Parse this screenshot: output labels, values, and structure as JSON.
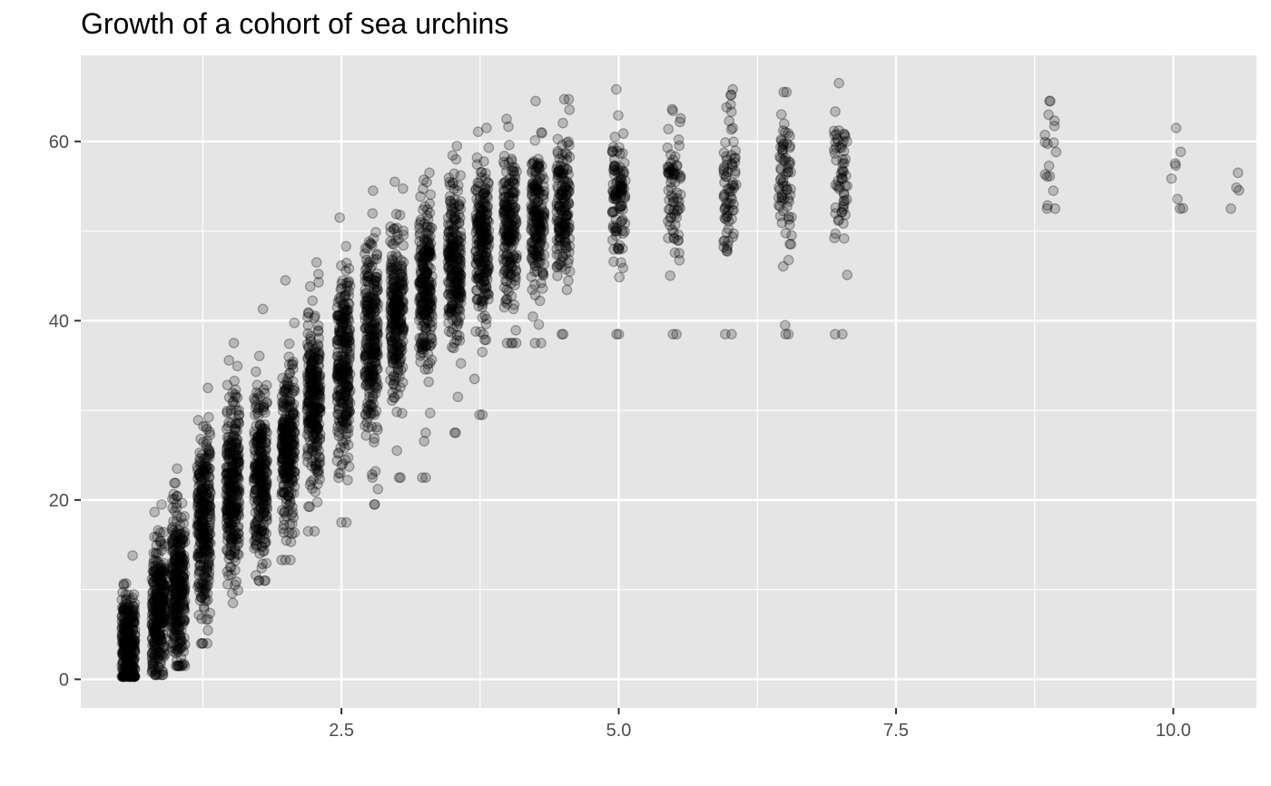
{
  "chart_data": {
    "type": "scatter",
    "title": "Growth of a cohort of sea urchins",
    "xlabel": "",
    "ylabel": "",
    "xlim": [
      0.15,
      10.75
    ],
    "ylim": [
      -3.2,
      69.6
    ],
    "x_major_ticks": [
      2.5,
      5.0,
      7.5,
      10.0
    ],
    "x_tick_labels": [
      "2.5",
      "5.0",
      "7.5",
      "10.0"
    ],
    "x_minor_ticks": [
      1.25,
      3.75,
      6.25,
      8.75
    ],
    "y_major_ticks": [
      0,
      20,
      40,
      60
    ],
    "y_tick_labels": [
      "0",
      "20",
      "40",
      "60"
    ],
    "y_minor_ticks": [
      10,
      30,
      50
    ],
    "grid": true,
    "point_color": "#000000",
    "point_alpha": 0.2,
    "panel_background": "#e5e5e5",
    "grid_color": "#ffffff",
    "groups": [
      {
        "x": 0.58,
        "n": 320,
        "mean": 4,
        "sd": 2.8,
        "min": 0.3,
        "max": 13.8
      },
      {
        "x": 0.85,
        "n": 320,
        "mean": 8,
        "sd": 3.8,
        "min": 0.5,
        "max": 19.5
      },
      {
        "x": 1.03,
        "n": 320,
        "mean": 10.5,
        "sd": 4.5,
        "min": 1.5,
        "max": 23.5
      },
      {
        "x": 1.26,
        "n": 300,
        "mean": 17,
        "sd": 5,
        "min": 4,
        "max": 32.5
      },
      {
        "x": 1.52,
        "n": 300,
        "mean": 21,
        "sd": 5,
        "min": 8.5,
        "max": 37.5
      },
      {
        "x": 1.77,
        "n": 280,
        "mean": 23,
        "sd": 5,
        "min": 11,
        "max": 41.3
      },
      {
        "x": 2.02,
        "n": 280,
        "mean": 26,
        "sd": 5,
        "min": 13.3,
        "max": 44.5
      },
      {
        "x": 2.25,
        "n": 280,
        "mean": 31,
        "sd": 5,
        "min": 16.5,
        "max": 46.5
      },
      {
        "x": 2.52,
        "n": 280,
        "mean": 35,
        "sd": 5.2,
        "min": 17.5,
        "max": 51.5
      },
      {
        "x": 2.77,
        "n": 270,
        "mean": 38,
        "sd": 5,
        "min": 19.5,
        "max": 54.5
      },
      {
        "x": 3.0,
        "n": 260,
        "mean": 41,
        "sd": 5,
        "min": 22.5,
        "max": 55.5
      },
      {
        "x": 3.26,
        "n": 250,
        "mean": 44,
        "sd": 4.5,
        "min": 22.5,
        "max": 56.5
      },
      {
        "x": 3.52,
        "n": 240,
        "mean": 47,
        "sd": 4.5,
        "min": 27.5,
        "max": 59.5
      },
      {
        "x": 3.77,
        "n": 230,
        "mean": 49,
        "sd": 4,
        "min": 29.5,
        "max": 61.5
      },
      {
        "x": 4.02,
        "n": 200,
        "mean": 50,
        "sd": 4,
        "min": 37.5,
        "max": 62.5
      },
      {
        "x": 4.27,
        "n": 190,
        "mean": 51.5,
        "sd": 4,
        "min": 37.5,
        "max": 64.5
      },
      {
        "x": 4.5,
        "n": 170,
        "mean": 53,
        "sd": 4,
        "min": 38.5,
        "max": 64.7
      },
      {
        "x": 5.0,
        "n": 110,
        "mean": 54,
        "sd": 3.8,
        "min": 38.5,
        "max": 65.8
      },
      {
        "x": 5.5,
        "n": 75,
        "mean": 54.5,
        "sd": 3.8,
        "min": 38.5,
        "max": 63.6
      },
      {
        "x": 6.0,
        "n": 75,
        "mean": 55,
        "sd": 4,
        "min": 38.5,
        "max": 65.8
      },
      {
        "x": 6.5,
        "n": 70,
        "mean": 56,
        "sd": 4,
        "min": 38.5,
        "max": 65.5
      },
      {
        "x": 7.0,
        "n": 60,
        "mean": 56,
        "sd": 4,
        "min": 38.5,
        "max": 66.5
      },
      {
        "x": 8.9,
        "n": 16,
        "mean": 59,
        "sd": 3,
        "min": 52.5,
        "max": 64.5
      },
      {
        "x": 10.03,
        "n": 6,
        "mean": 57.5,
        "sd": 3,
        "min": 52.5,
        "max": 61.5
      },
      {
        "x": 10.55,
        "n": 2,
        "mean": 54.5,
        "sd": 2,
        "min": 52.5,
        "max": 56.5
      }
    ],
    "outliers": [
      {
        "x": 2.5,
        "y": 17.5
      },
      {
        "x": 2.8,
        "y": 19.5
      },
      {
        "x": 2.2,
        "y": 16.5
      },
      {
        "x": 2.78,
        "y": 22.5
      },
      {
        "x": 3.02,
        "y": 22.5
      },
      {
        "x": 3.26,
        "y": 22.5
      },
      {
        "x": 3.0,
        "y": 25.5
      },
      {
        "x": 3.26,
        "y": 27.5
      },
      {
        "x": 3.52,
        "y": 27.5
      },
      {
        "x": 3.77,
        "y": 29.5
      },
      {
        "x": 3.55,
        "y": 31.5
      },
      {
        "x": 3.7,
        "y": 33.5
      },
      {
        "x": 3.77,
        "y": 36.5
      },
      {
        "x": 3.78,
        "y": 38.5
      },
      {
        "x": 4.03,
        "y": 37.5
      },
      {
        "x": 4.3,
        "y": 37.5
      },
      {
        "x": 4.5,
        "y": 38.5
      },
      {
        "x": 4.98,
        "y": 38.5
      },
      {
        "x": 5.52,
        "y": 38.5
      },
      {
        "x": 5.96,
        "y": 38.5
      },
      {
        "x": 6.53,
        "y": 38.5
      },
      {
        "x": 6.5,
        "y": 39.5
      },
      {
        "x": 6.95,
        "y": 38.5
      }
    ]
  }
}
